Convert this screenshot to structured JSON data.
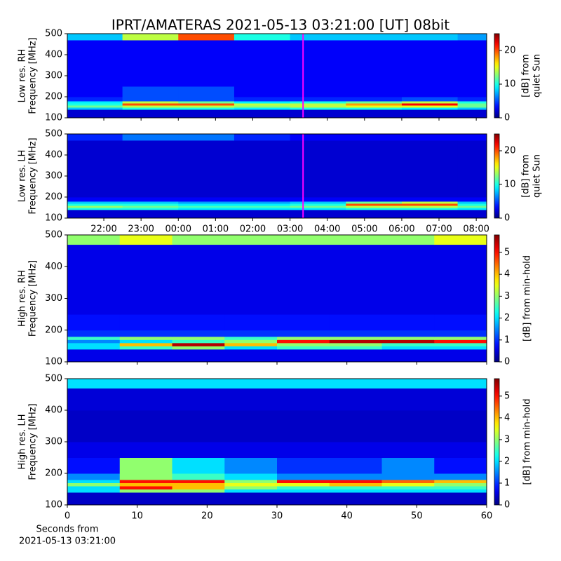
{
  "chart_data": {
    "type": "heatmap",
    "title": "IPRT/AMATERAS 2021-05-13 03:21:00 [UT]   08bit",
    "colormap": "jet",
    "xlabel": [
      "Seconds from",
      "2021-05-13 03:21:00"
    ],
    "panels": [
      {
        "ylabel": [
          "Low res. RH",
          "Frequency [MHz]"
        ],
        "ylim": [
          100,
          500
        ],
        "yticks": [
          100,
          200,
          300,
          400,
          500
        ],
        "xlim": [
          21.02,
          32.28
        ],
        "marker_x": 27.35,
        "marker_color": "#ff00ff",
        "zlim": [
          0,
          25
        ],
        "zticks": [
          0,
          10,
          20
        ],
        "colorbar_label": [
          "[dB] from",
          "quiet Sun"
        ],
        "x_edges": [
          21.02,
          22.5,
          24,
          25.5,
          27,
          28.5,
          30,
          31.5,
          32.28
        ],
        "y_edges": [
          100,
          140,
          150,
          160,
          170,
          180,
          200,
          250,
          300,
          400,
          470,
          500
        ],
        "z": [
          [
            2,
            2,
            2,
            2,
            2,
            2,
            2,
            2
          ],
          [
            8,
            10,
            10,
            9,
            10,
            10,
            9,
            8
          ],
          [
            12,
            14,
            14,
            13,
            14,
            15,
            15,
            12
          ],
          [
            10,
            20,
            20,
            14,
            14,
            18,
            22,
            12
          ],
          [
            9,
            14,
            12,
            9,
            10,
            12,
            14,
            10
          ],
          [
            4,
            5,
            5,
            4,
            4,
            4,
            5,
            4
          ],
          [
            3,
            5,
            5,
            3,
            3,
            3,
            3,
            3
          ],
          [
            3,
            3,
            3,
            3,
            3,
            3,
            3,
            3
          ],
          [
            3,
            3,
            3,
            3,
            3,
            3,
            3,
            3
          ],
          [
            3,
            3,
            3,
            3,
            3,
            3,
            3,
            3
          ],
          [
            8,
            14,
            20,
            10,
            8,
            8,
            8,
            7
          ]
        ]
      },
      {
        "ylabel": [
          "Low res. LH",
          "Frequency [MHz]"
        ],
        "ylim": [
          100,
          500
        ],
        "yticks": [
          100,
          200,
          300,
          400,
          500
        ],
        "xlim": [
          21.02,
          32.28
        ],
        "marker_x": 27.35,
        "marker_color": "#ff00ff",
        "xticks": [
          {
            "value": 22,
            "label": "22:00"
          },
          {
            "value": 23,
            "label": "23:00"
          },
          {
            "value": 24,
            "label": "00:00"
          },
          {
            "value": 25,
            "label": "01:00"
          },
          {
            "value": 26,
            "label": "02:00"
          },
          {
            "value": 27,
            "label": "03:00"
          },
          {
            "value": 28,
            "label": "04:00"
          },
          {
            "value": 29,
            "label": "05:00"
          },
          {
            "value": 30,
            "label": "06:00"
          },
          {
            "value": 31,
            "label": "07:00"
          },
          {
            "value": 32,
            "label": "08:00"
          }
        ],
        "zlim": [
          0,
          25
        ],
        "zticks": [
          0,
          10,
          20
        ],
        "colorbar_label": [
          "[dB] from",
          "quiet Sun"
        ],
        "x_edges": [
          21.02,
          22.5,
          24,
          25.5,
          27,
          28.5,
          30,
          31.5,
          32.28
        ],
        "y_edges": [
          100,
          140,
          150,
          160,
          170,
          180,
          200,
          250,
          300,
          400,
          470,
          500
        ],
        "z": [
          [
            2,
            2,
            2,
            2,
            2,
            2,
            2,
            2
          ],
          [
            10,
            10,
            9,
            9,
            9,
            10,
            10,
            9
          ],
          [
            13,
            12,
            11,
            11,
            12,
            14,
            14,
            12
          ],
          [
            10,
            10,
            9,
            9,
            10,
            20,
            20,
            10
          ],
          [
            8,
            8,
            7,
            7,
            8,
            12,
            14,
            8
          ],
          [
            3,
            3,
            3,
            3,
            3,
            3,
            3,
            3
          ],
          [
            2,
            2,
            2,
            2,
            2,
            2,
            2,
            2
          ],
          [
            2,
            2,
            2,
            2,
            2,
            2,
            2,
            2
          ],
          [
            2,
            2,
            2,
            2,
            2,
            2,
            2,
            2
          ],
          [
            2,
            2,
            2,
            2,
            2,
            2,
            2,
            2
          ],
          [
            4,
            6,
            6,
            4,
            3,
            3,
            3,
            3
          ]
        ]
      },
      {
        "ylabel": [
          "High res. RH",
          "Frequency [MHz]"
        ],
        "ylim": [
          100,
          500
        ],
        "yticks": [
          100,
          200,
          300,
          400,
          500
        ],
        "xlim": [
          0,
          60
        ],
        "zlim": [
          0,
          5.8
        ],
        "zticks": [
          0,
          1,
          2,
          3,
          4,
          5
        ],
        "colorbar_label": [
          "[dB] from min-hold"
        ],
        "x_edges": [
          0,
          7.5,
          15,
          22.5,
          30,
          37.5,
          45,
          52.5,
          60
        ],
        "y_edges": [
          100,
          140,
          150,
          160,
          170,
          180,
          200,
          250,
          300,
          400,
          470,
          500
        ],
        "z": [
          [
            0.6,
            0.6,
            0.6,
            0.6,
            0.6,
            0.6,
            0.6,
            0.6
          ],
          [
            2,
            2.5,
            3,
            2,
            2.5,
            2.5,
            2,
            2
          ],
          [
            2,
            4,
            5.5,
            4,
            3,
            3,
            2.5,
            2.5
          ],
          [
            1.5,
            2,
            2.5,
            3,
            5,
            5.5,
            5.5,
            5
          ],
          [
            2.5,
            3,
            3,
            2.5,
            3,
            3,
            3,
            3
          ],
          [
            1,
            1,
            1,
            1,
            1,
            1,
            1,
            1
          ],
          [
            0.8,
            0.8,
            0.8,
            0.8,
            0.8,
            0.8,
            0.8,
            0.8
          ],
          [
            0.6,
            0.6,
            0.6,
            0.6,
            0.6,
            0.6,
            0.6,
            0.6
          ],
          [
            0.6,
            0.6,
            0.6,
            0.6,
            0.6,
            0.6,
            0.6,
            0.6
          ],
          [
            0.6,
            0.6,
            0.6,
            0.6,
            0.6,
            0.6,
            0.6,
            0.6
          ],
          [
            3,
            3.5,
            3,
            3,
            3,
            3,
            3,
            3.5
          ]
        ]
      },
      {
        "ylabel": [
          "High res. LH",
          "Frequency [MHz]"
        ],
        "ylim": [
          100,
          500
        ],
        "yticks": [
          100,
          200,
          300,
          400,
          500
        ],
        "xlim": [
          0,
          60
        ],
        "xticks": [
          0,
          10,
          20,
          30,
          40,
          50,
          60
        ],
        "zlim": [
          0,
          5.8
        ],
        "zticks": [
          0,
          1,
          2,
          3,
          4,
          5
        ],
        "colorbar_label": [
          "[dB] from min-hold"
        ],
        "x_edges": [
          0,
          7.5,
          15,
          22.5,
          30,
          37.5,
          45,
          52.5,
          60
        ],
        "y_edges": [
          100,
          140,
          150,
          160,
          170,
          180,
          200,
          250,
          300,
          400,
          470,
          500
        ],
        "z": [
          [
            0.4,
            0.4,
            0.4,
            0.4,
            0.4,
            0.4,
            0.4,
            0.4
          ],
          [
            2,
            3,
            3,
            2,
            2,
            2,
            2,
            2
          ],
          [
            2,
            5,
            4,
            3,
            2.5,
            2.5,
            2.5,
            2.5
          ],
          [
            3,
            4,
            4,
            3.5,
            3.5,
            4,
            3.5,
            3
          ],
          [
            2,
            5,
            5,
            3,
            5,
            5,
            4.5,
            4
          ],
          [
            1.5,
            3,
            2.5,
            2,
            1.5,
            1.5,
            1.5,
            1.5
          ],
          [
            0.8,
            3,
            2,
            1.5,
            1,
            1,
            1.5,
            0.8
          ],
          [
            0.6,
            0.6,
            0.6,
            0.6,
            0.6,
            0.6,
            0.6,
            0.6
          ],
          [
            0.4,
            0.4,
            0.4,
            0.4,
            0.4,
            0.4,
            0.4,
            0.4
          ],
          [
            0.5,
            0.5,
            0.5,
            0.5,
            0.5,
            0.5,
            0.5,
            0.5
          ],
          [
            2,
            2,
            2,
            2,
            2,
            2,
            2,
            2
          ]
        ]
      }
    ]
  }
}
